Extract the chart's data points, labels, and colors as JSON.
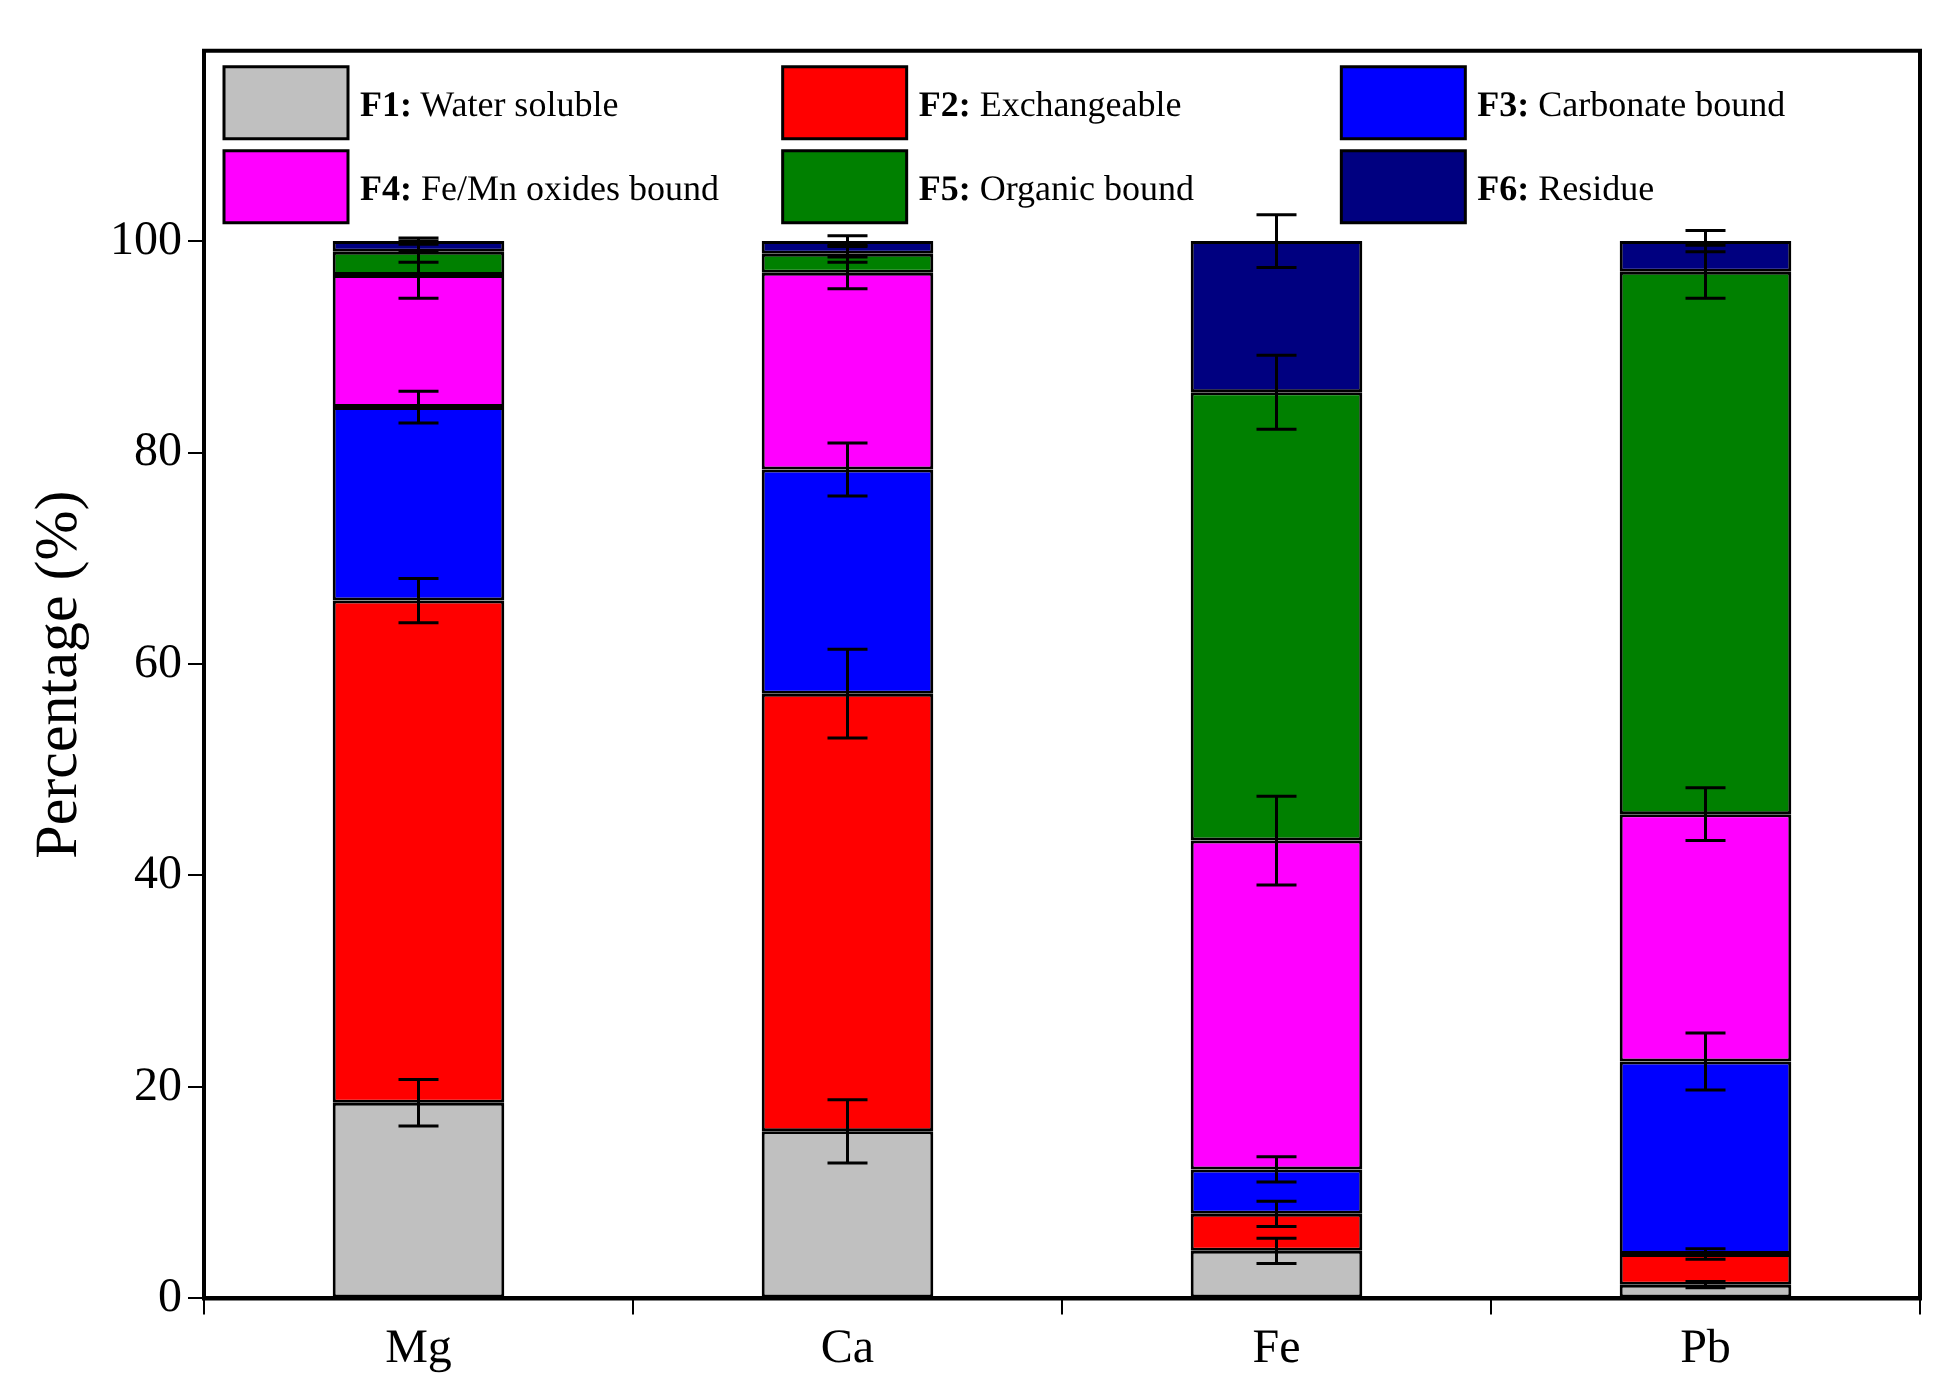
{
  "chart_data": {
    "type": "bar",
    "stacked": true,
    "ylabel": "Percentage (%)",
    "categories": [
      "Mg",
      "Ca",
      "Fe",
      "Pb"
    ],
    "ylim": [
      0,
      118
    ],
    "yticks": [
      0,
      20,
      40,
      60,
      80,
      100
    ],
    "grid": false,
    "legend": "top",
    "series": [
      {
        "name": "F1: Water soluble",
        "color": "#c0c0c0",
        "values": [
          18.5,
          15.8,
          4.5,
          1.3
        ],
        "errors": [
          2.2,
          3.0,
          1.2,
          0.3
        ]
      },
      {
        "name": "F2: Exchangeable",
        "color": "#ff0000",
        "values": [
          47.5,
          41.4,
          3.5,
          2.9
        ],
        "errors": [
          2.1,
          4.2,
          1.2,
          0.5
        ]
      },
      {
        "name": "F3: Carbonate bound",
        "color": "#0000ff",
        "values": [
          18.3,
          21.2,
          4.2,
          18.2
        ],
        "errors": [
          1.5,
          2.5,
          1.2,
          2.7
        ]
      },
      {
        "name": "F4: Fe/Mn oxides bound",
        "color": "#ff00ff",
        "values": [
          12.5,
          18.6,
          31.1,
          23.4
        ],
        "errors": [
          2.2,
          1.5,
          4.2,
          2.5
        ]
      },
      {
        "name": "F5: Organic bound",
        "color": "#008000",
        "values": [
          2.2,
          1.8,
          42.4,
          51.3
        ],
        "errors": [
          1.0,
          0.8,
          3.5,
          2.5
        ]
      },
      {
        "name": "F6: Residue",
        "color": "#000080",
        "values": [
          1.0,
          1.2,
          14.3,
          2.9
        ],
        "errors": [
          0.3,
          0.5,
          2.5,
          1.0
        ]
      }
    ]
  }
}
